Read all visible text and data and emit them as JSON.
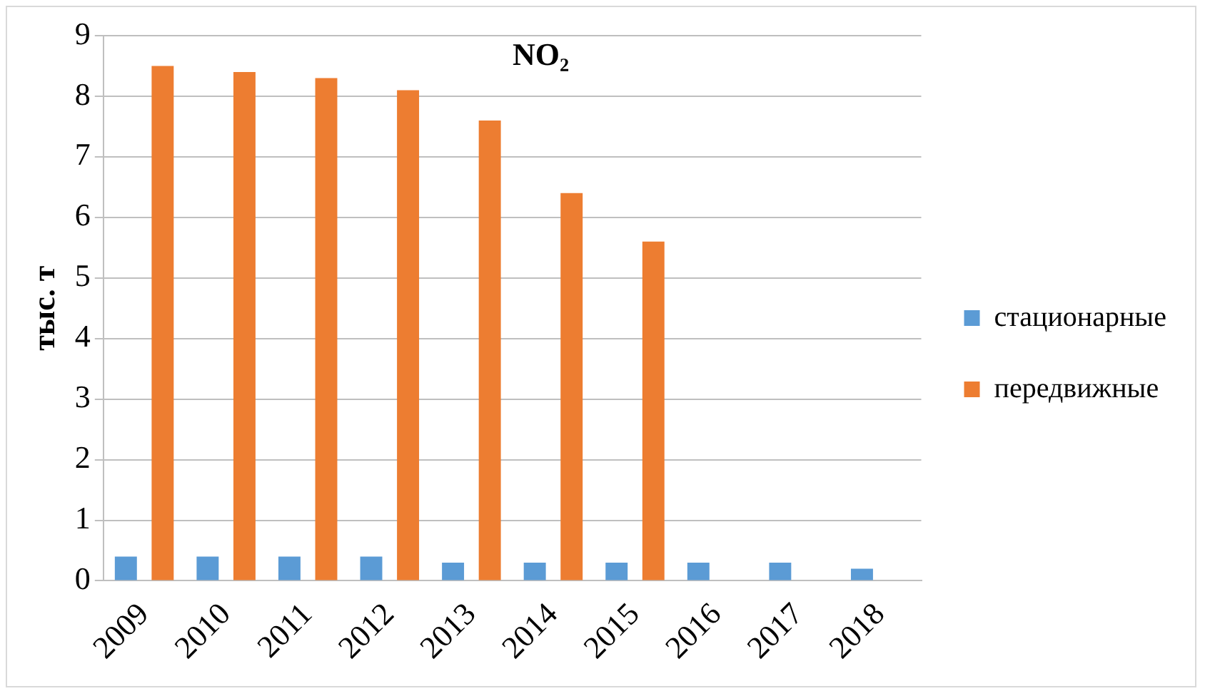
{
  "chart_data": {
    "type": "bar",
    "title": "NO₂",
    "ylabel": "тыс. т",
    "categories": [
      "2009",
      "2010",
      "2011",
      "2012",
      "2013",
      "2014",
      "2015",
      "2016",
      "2017",
      "2018"
    ],
    "series": [
      {
        "name": "стационарные",
        "color": "#5b9bd5",
        "values": [
          0.4,
          0.4,
          0.4,
          0.4,
          0.3,
          0.3,
          0.3,
          0.3,
          0.3,
          0.2
        ]
      },
      {
        "name": "передвижные",
        "color": "#ed7d31",
        "values": [
          8.5,
          8.4,
          8.3,
          8.1,
          7.6,
          6.4,
          5.6,
          null,
          null,
          null
        ]
      }
    ],
    "ylim": [
      0,
      9
    ],
    "yticks": [
      0,
      1,
      2,
      3,
      4,
      5,
      6,
      7,
      8,
      9
    ],
    "grid": "y",
    "legend": "right"
  }
}
